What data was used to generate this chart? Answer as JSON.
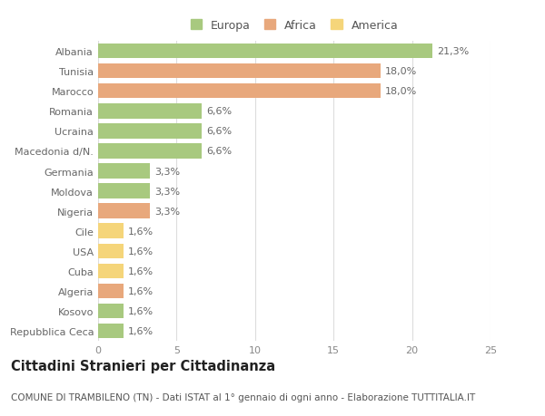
{
  "categories": [
    "Albania",
    "Tunisia",
    "Marocco",
    "Romania",
    "Ucraina",
    "Macedonia d/N.",
    "Germania",
    "Moldova",
    "Nigeria",
    "Cile",
    "USA",
    "Cuba",
    "Algeria",
    "Kosovo",
    "Repubblica Ceca"
  ],
  "values": [
    21.3,
    18.0,
    18.0,
    6.6,
    6.6,
    6.6,
    3.3,
    3.3,
    3.3,
    1.6,
    1.6,
    1.6,
    1.6,
    1.6,
    1.6
  ],
  "labels": [
    "21,3%",
    "18,0%",
    "18,0%",
    "6,6%",
    "6,6%",
    "6,6%",
    "3,3%",
    "3,3%",
    "3,3%",
    "1,6%",
    "1,6%",
    "1,6%",
    "1,6%",
    "1,6%",
    "1,6%"
  ],
  "colors": [
    "#a8c97f",
    "#e8a87c",
    "#e8a87c",
    "#a8c97f",
    "#a8c97f",
    "#a8c97f",
    "#a8c97f",
    "#a8c97f",
    "#e8a87c",
    "#f5d57a",
    "#f5d57a",
    "#f5d57a",
    "#e8a87c",
    "#a8c97f",
    "#a8c97f"
  ],
  "legend": [
    {
      "label": "Europa",
      "color": "#a8c97f"
    },
    {
      "label": "Africa",
      "color": "#e8a87c"
    },
    {
      "label": "America",
      "color": "#f5d57a"
    }
  ],
  "xlim": [
    0,
    25
  ],
  "xticks": [
    0,
    5,
    10,
    15,
    20,
    25
  ],
  "title": "Cittadini Stranieri per Cittadinanza",
  "subtitle": "COMUNE DI TRAMBILENO (TN) - Dati ISTAT al 1° gennaio di ogni anno - Elaborazione TUTTITALIA.IT",
  "background_color": "#ffffff",
  "grid_color": "#dddddd",
  "bar_height": 0.75,
  "label_fontsize": 8,
  "tick_fontsize": 8,
  "legend_fontsize": 9,
  "title_fontsize": 10.5,
  "subtitle_fontsize": 7.5
}
